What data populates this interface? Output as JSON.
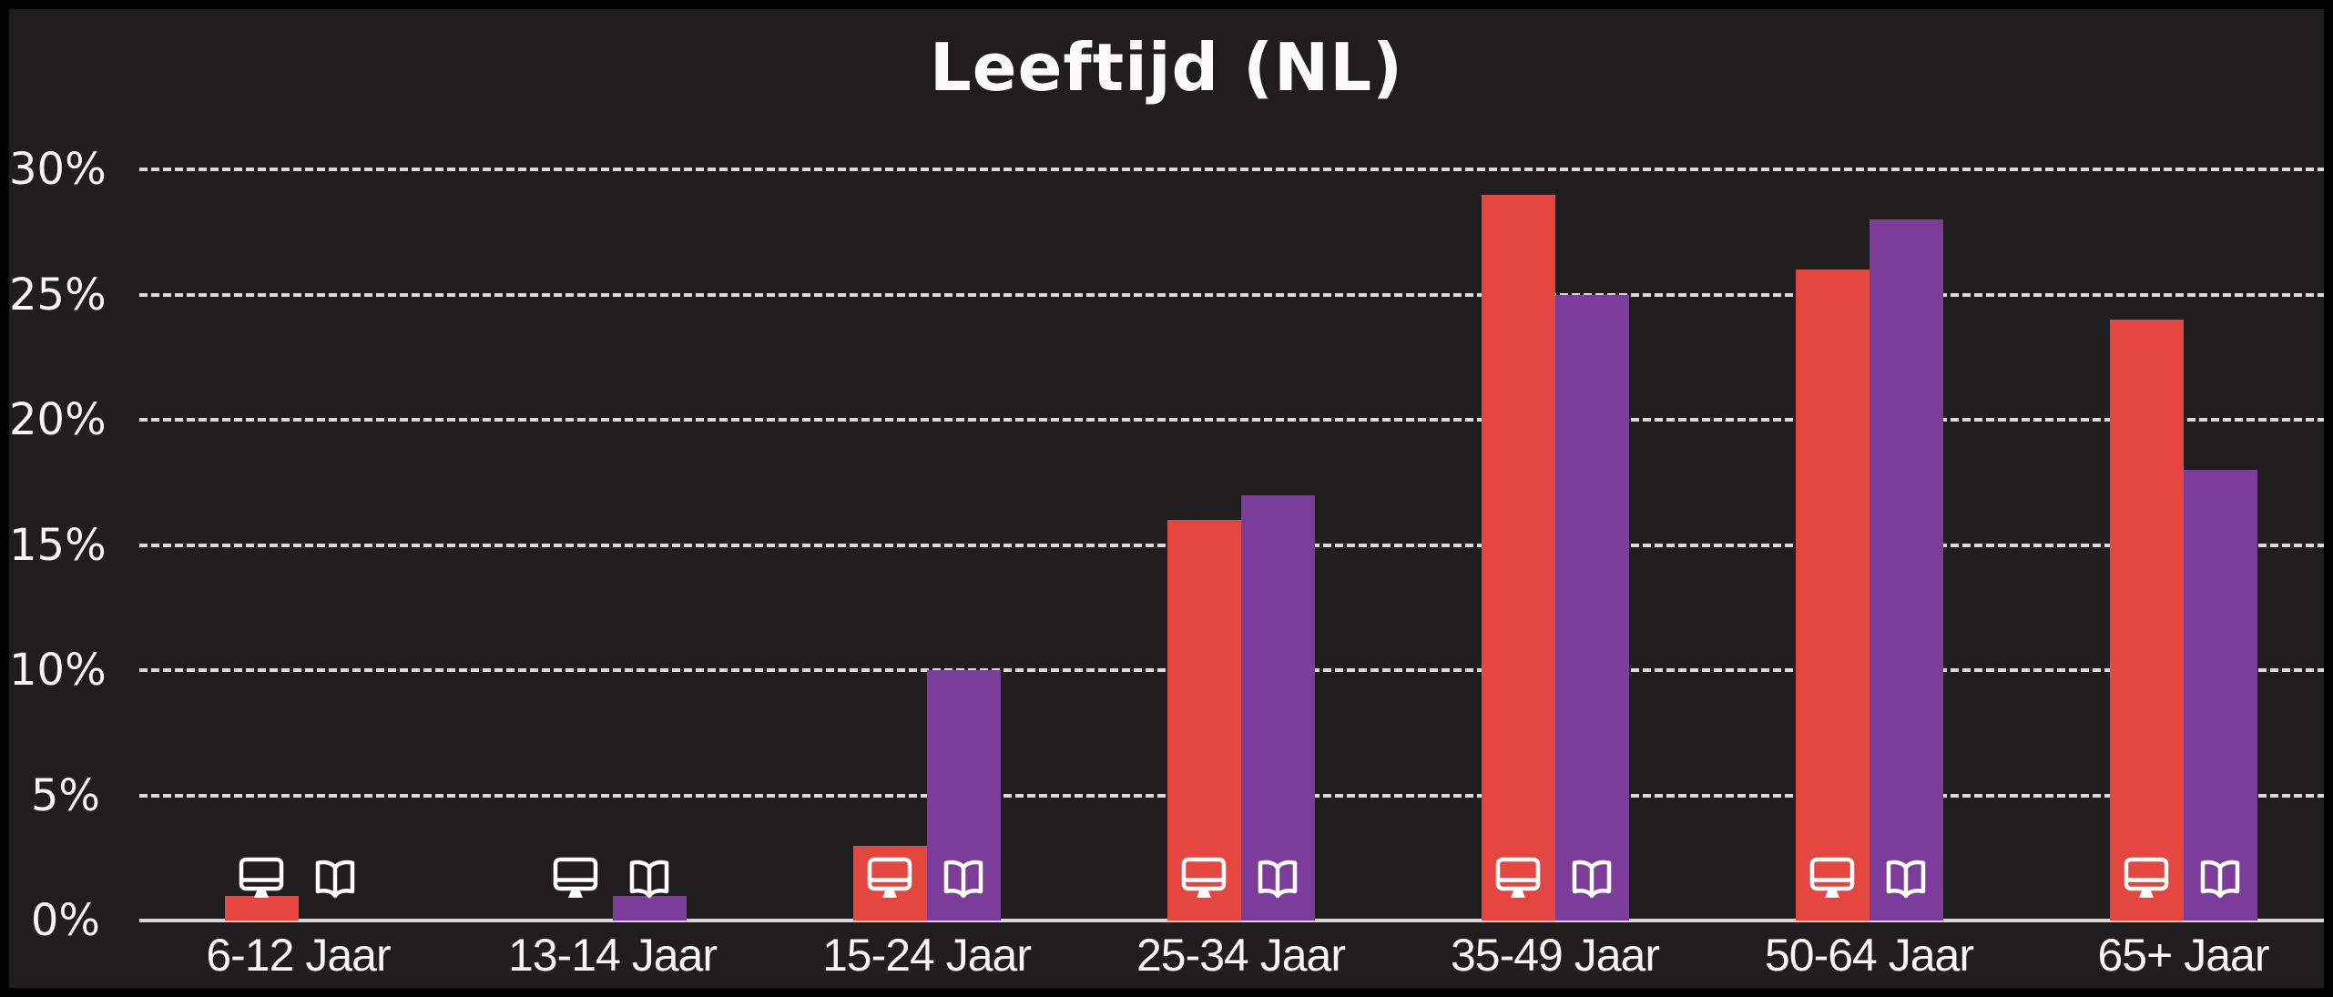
{
  "title": "Leeftijd (NL)",
  "chart_data": {
    "type": "bar",
    "title": "Leeftijd (NL)",
    "categories": [
      "6-12 Jaar",
      "13-14 Jaar",
      "15-24 Jaar",
      "25-34 Jaar",
      "35-49 Jaar",
      "50-64 Jaar",
      "65+ Jaar"
    ],
    "series": [
      {
        "name": "monitor",
        "icon": "monitor-icon",
        "color": "#E54740",
        "values": [
          1,
          0,
          3,
          16,
          29,
          26,
          24
        ]
      },
      {
        "name": "book",
        "icon": "book-icon",
        "color": "#7B3D99",
        "values": [
          0,
          1,
          10,
          17,
          25,
          28,
          18
        ]
      }
    ],
    "xlabel": "",
    "ylabel": "",
    "ylim": [
      0,
      30
    ],
    "ytick_step": 5,
    "yticks": [
      "0%",
      "5%",
      "10%",
      "15%",
      "20%",
      "25%",
      "30%"
    ],
    "grid": "horizontal-dashed",
    "legend_position": "white icons drawn at base of each bar pair"
  },
  "colors": {
    "background": "#1F1D1D",
    "frame_border": "#000000",
    "text": "#FAFAFA",
    "gridline": "#DCDADA",
    "baseline": "#D8D6D6",
    "icon": "#FFFFFF"
  }
}
